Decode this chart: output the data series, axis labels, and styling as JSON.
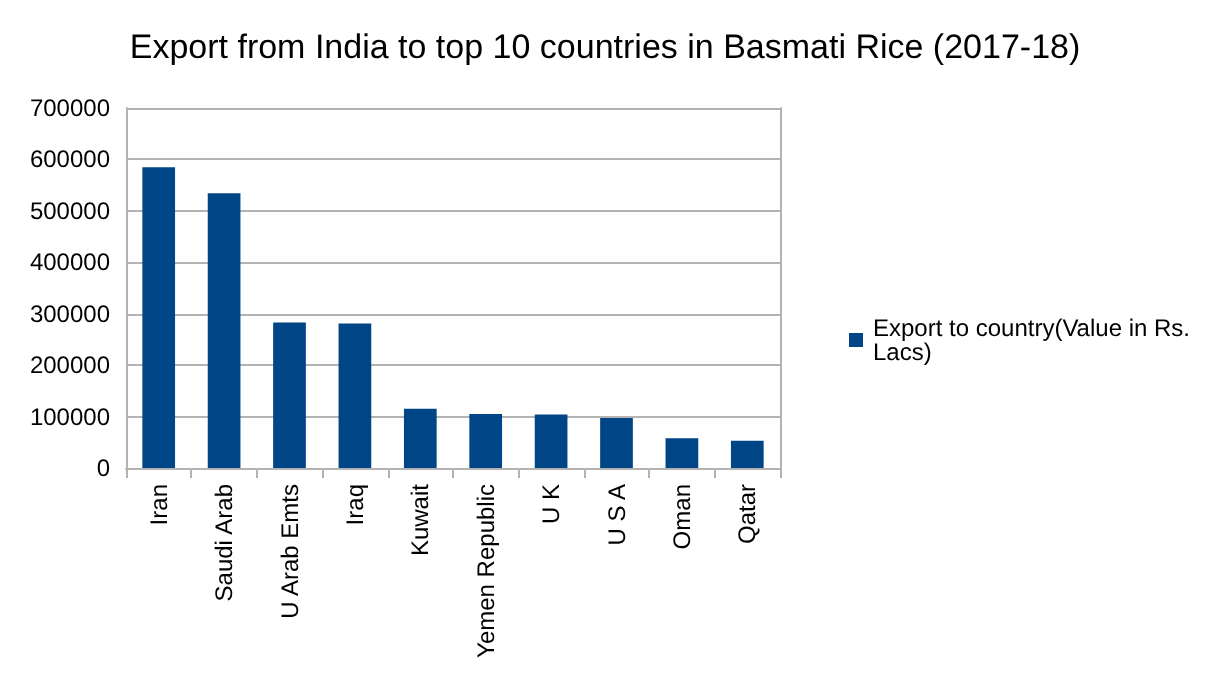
{
  "chart_data": {
    "type": "bar",
    "title": "Export from India to top 10 countries in Basmati Rice (2017-18)",
    "categories": [
      "Iran",
      "Saudi Arab",
      "U Arab Emts",
      "Iraq",
      "Kuwait",
      "Yemen Republic",
      "U K",
      "U S A",
      "Oman",
      "Qatar"
    ],
    "series": [
      {
        "name": "Export to country(Value in Rs. Lacs)",
        "color": "#004586",
        "values": [
          585000,
          534000,
          283000,
          281000,
          115000,
          105000,
          104000,
          97000,
          58000,
          53000
        ]
      }
    ],
    "ylim": [
      0,
      700000
    ],
    "yticks": [
      0,
      100000,
      200000,
      300000,
      400000,
      500000,
      600000,
      700000
    ],
    "grid": "y",
    "legend": "right"
  }
}
